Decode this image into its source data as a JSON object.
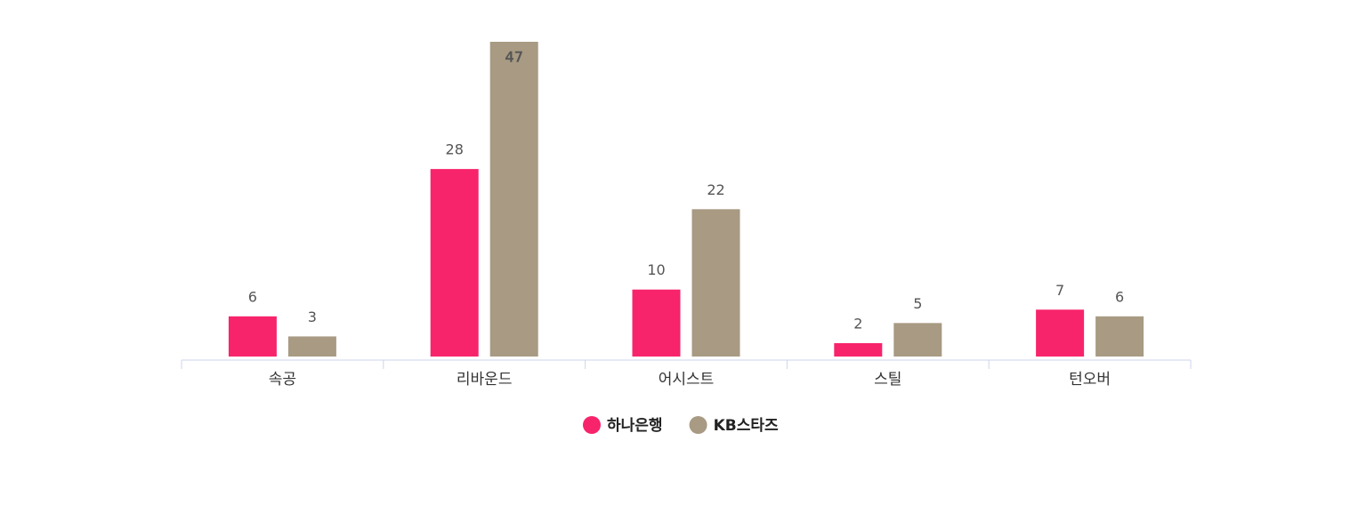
{
  "chart_data": {
    "type": "bar",
    "categories": [
      "속공",
      "리바운드",
      "어시스트",
      "스틸",
      "턴오버"
    ],
    "series": [
      {
        "name": "하나은행",
        "color": "#f7246b",
        "values": [
          6,
          28,
          10,
          2,
          7
        ]
      },
      {
        "name": "KB스타즈",
        "color": "#a89a83",
        "values": [
          3,
          47,
          22,
          5,
          6
        ]
      }
    ],
    "ylim": [
      0,
      47
    ]
  }
}
